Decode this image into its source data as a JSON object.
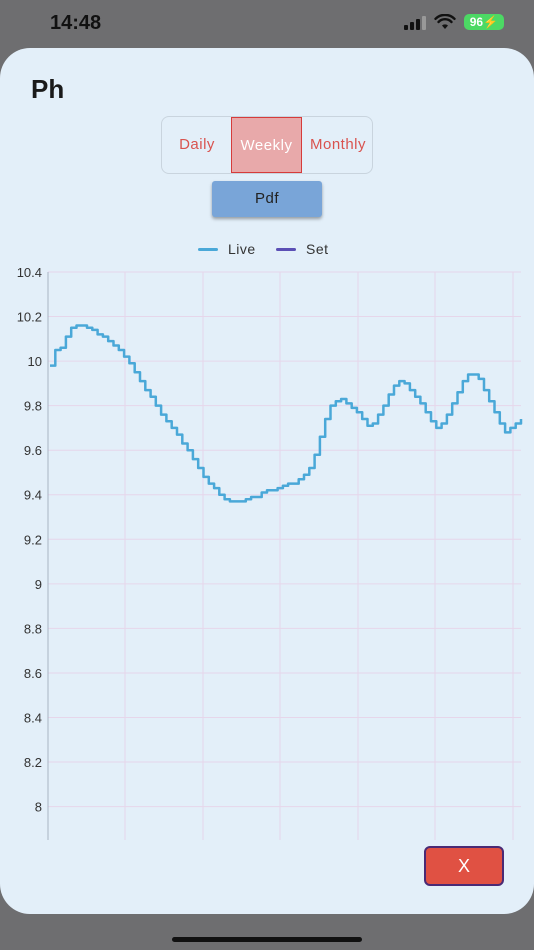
{
  "status": {
    "time": "14:48",
    "battery": "96"
  },
  "sheet": {
    "title": "Ph"
  },
  "tabs": [
    {
      "label": "Daily",
      "active": false
    },
    {
      "label": "Weekly",
      "active": true
    },
    {
      "label": "Monthly",
      "active": false
    }
  ],
  "pdf_label": "Pdf",
  "close_label": "X",
  "colors": {
    "live": "#4aa8d8",
    "set": "#5b4fb5",
    "accent": "#e05143"
  },
  "icons": [
    "cellular-signal-icon",
    "wifi-icon",
    "battery-icon"
  ],
  "chart_data": {
    "type": "line",
    "legend": [
      "Live",
      "Set"
    ],
    "ylim": [
      7.85,
      10.4
    ],
    "yticks": [
      "10.4",
      "10.2",
      "10",
      "9.8",
      "9.6",
      "9.4",
      "9.2",
      "9",
      "8.8",
      "8.6",
      "8.4",
      "8.2",
      "8"
    ],
    "grid": true,
    "series": [
      {
        "name": "Live",
        "values": [
          9.98,
          10.05,
          10.06,
          10.11,
          10.15,
          10.16,
          10.16,
          10.15,
          10.14,
          10.12,
          10.11,
          10.09,
          10.07,
          10.05,
          10.02,
          9.99,
          9.95,
          9.91,
          9.87,
          9.84,
          9.8,
          9.76,
          9.73,
          9.7,
          9.67,
          9.63,
          9.6,
          9.56,
          9.52,
          9.48,
          9.45,
          9.43,
          9.4,
          9.38,
          9.37,
          9.37,
          9.37,
          9.38,
          9.39,
          9.39,
          9.41,
          9.42,
          9.42,
          9.43,
          9.44,
          9.45,
          9.45,
          9.47,
          9.49,
          9.52,
          9.58,
          9.66,
          9.74,
          9.8,
          9.82,
          9.83,
          9.81,
          9.79,
          9.77,
          9.74,
          9.71,
          9.72,
          9.76,
          9.8,
          9.85,
          9.89,
          9.91,
          9.9,
          9.87,
          9.84,
          9.81,
          9.77,
          9.73,
          9.7,
          9.72,
          9.76,
          9.81,
          9.86,
          9.91,
          9.94,
          9.94,
          9.92,
          9.87,
          9.82,
          9.77,
          9.72,
          9.68,
          9.7,
          9.72,
          9.74
        ]
      },
      {
        "name": "Set",
        "values": []
      }
    ]
  }
}
